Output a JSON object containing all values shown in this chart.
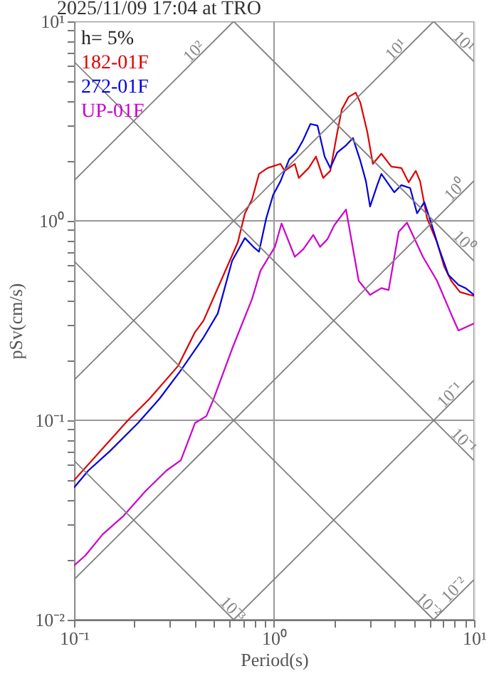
{
  "chart_data": {
    "type": "line",
    "title": "2025/11/09 17:04 at TRO",
    "xlabel": "Period(s)",
    "ylabel": "pSv(cm/s)",
    "log": "xy",
    "grid": true,
    "legend": "top left",
    "line_style": "solid",
    "marker": "none",
    "xlim": [
      0.1,
      10
    ],
    "ylim": [
      0.01,
      10
    ],
    "xticks": [
      {
        "value": 0.1,
        "label": "10⁻¹"
      },
      {
        "value": 0.2,
        "label": null
      },
      {
        "value": 0.3,
        "label": null
      },
      {
        "value": 0.4,
        "label": null
      },
      {
        "value": 0.5,
        "label": null
      },
      {
        "value": 0.6,
        "label": null
      },
      {
        "value": 0.7,
        "label": null
      },
      {
        "value": 0.8,
        "label": null
      },
      {
        "value": 0.9,
        "label": null
      },
      {
        "value": 1,
        "label": "10⁰"
      },
      {
        "value": 2,
        "label": null
      },
      {
        "value": 3,
        "label": null
      },
      {
        "value": 4,
        "label": null
      },
      {
        "value": 5,
        "label": null
      },
      {
        "value": 6,
        "label": null
      },
      {
        "value": 7,
        "label": null
      },
      {
        "value": 8,
        "label": null
      },
      {
        "value": 9,
        "label": null
      },
      {
        "value": 10,
        "label": "10¹"
      }
    ],
    "yticks": [
      {
        "value": 0.01,
        "label": "10⁻²"
      },
      {
        "value": 0.02,
        "label": null
      },
      {
        "value": 0.03,
        "label": null
      },
      {
        "value": 0.04,
        "label": null
      },
      {
        "value": 0.05,
        "label": null
      },
      {
        "value": 0.06,
        "label": null
      },
      {
        "value": 0.07,
        "label": null
      },
      {
        "value": 0.08,
        "label": null
      },
      {
        "value": 0.09,
        "label": null
      },
      {
        "value": 0.1,
        "label": "10⁻¹"
      },
      {
        "value": 0.2,
        "label": null
      },
      {
        "value": 0.3,
        "label": null
      },
      {
        "value": 0.4,
        "label": null
      },
      {
        "value": 0.5,
        "label": null
      },
      {
        "value": 0.6,
        "label": null
      },
      {
        "value": 0.7,
        "label": null
      },
      {
        "value": 0.8,
        "label": null
      },
      {
        "value": 0.9,
        "label": null
      },
      {
        "value": 1,
        "label": "10⁰"
      },
      {
        "value": 2,
        "label": null
      },
      {
        "value": 3,
        "label": null
      },
      {
        "value": 4,
        "label": null
      },
      {
        "value": 5,
        "label": null
      },
      {
        "value": 6,
        "label": null
      },
      {
        "value": 7,
        "label": null
      },
      {
        "value": 8,
        "label": null
      },
      {
        "value": 9,
        "label": null
      },
      {
        "value": 10,
        "label": "10¹"
      }
    ],
    "annotations": [
      "h= 5%",
      {
        "text": "10²",
        "x": 0.42,
        "y": 6.68
      },
      {
        "text": "10¹",
        "x": 4.3,
        "y": 6.84
      },
      {
        "text": "10¹",
        "x": 8.4,
        "y": 7.48
      },
      {
        "text": "10⁰",
        "x": 8.5,
        "y": 1.35
      },
      {
        "text": "10⁰",
        "x": 8.4,
        "y": 0.748
      },
      {
        "text": "10⁻¹",
        "x": 8.0,
        "y": 0.127
      },
      {
        "text": "10⁻¹",
        "x": 8.4,
        "y": 0.0748
      },
      {
        "text": "10⁻³",
        "x": 0.587,
        "y": 0.0107
      },
      {
        "text": "10⁻²",
        "x": 5.6,
        "y": 0.0112
      },
      {
        "text": "10⁻²",
        "x": 8.4,
        "y": 0.0134
      }
    ],
    "series": [
      {
        "name": "182-01F",
        "color": "#dd0000",
        "x": [
          0.1,
          0.186,
          0.238,
          0.331,
          0.403,
          0.444,
          0.559,
          0.659,
          0.715,
          0.776,
          0.841,
          0.929,
          1.077,
          1.13,
          1.27,
          1.33,
          1.49,
          1.62,
          1.76,
          1.91,
          2.07,
          2.18,
          2.36,
          2.56,
          2.7,
          2.93,
          3.12,
          3.44,
          3.86,
          4.33,
          4.71,
          5.11,
          5.37,
          5.82,
          6.53,
          7.09,
          7.69,
          8.49,
          9.53,
          10
        ],
        "values": [
          0.05,
          0.1,
          0.128,
          0.187,
          0.277,
          0.316,
          0.535,
          0.78,
          1.09,
          1.28,
          1.72,
          1.84,
          1.93,
          1.78,
          1.93,
          1.64,
          1.84,
          2.1,
          1.64,
          1.78,
          2.77,
          3.61,
          4.18,
          4.39,
          3.92,
          2.77,
          1.93,
          2.17,
          1.87,
          1.84,
          1.56,
          1.78,
          1.58,
          1.03,
          0.78,
          0.59,
          0.5,
          0.44,
          0.425,
          0.42
        ]
      },
      {
        "name": "272-01F",
        "color": "#0000dd",
        "x": [
          0.1,
          0.118,
          0.151,
          0.209,
          0.267,
          0.342,
          0.444,
          0.523,
          0.617,
          0.715,
          0.788,
          0.841,
          0.914,
          0.99,
          1.077,
          1.19,
          1.29,
          1.4,
          1.52,
          1.65,
          1.79,
          1.91,
          2.07,
          2.29,
          2.48,
          2.7,
          2.88,
          3.02,
          3.28,
          3.44,
          3.99,
          4.33,
          4.79,
          5.19,
          5.64,
          6.11,
          6.64,
          7.45,
          8.36,
          9.06,
          10
        ],
        "values": [
          0.046,
          0.056,
          0.07,
          0.097,
          0.128,
          0.178,
          0.26,
          0.343,
          0.63,
          0.82,
          0.74,
          0.7,
          1.03,
          1.35,
          1.58,
          2.03,
          2.2,
          2.55,
          3.06,
          3.0,
          2.1,
          1.84,
          2.2,
          2.39,
          2.6,
          2.0,
          1.58,
          1.18,
          1.51,
          1.72,
          1.39,
          1.51,
          1.46,
          1.09,
          1.24,
          0.97,
          0.74,
          0.535,
          0.477,
          0.46,
          0.425
        ]
      },
      {
        "name": "UP-01F",
        "color": "#cc00cc",
        "x": [
          0.1,
          0.114,
          0.139,
          0.177,
          0.227,
          0.29,
          0.342,
          0.403,
          0.459,
          0.499,
          0.617,
          0.776,
          0.855,
          1.01,
          1.09,
          1.27,
          1.4,
          1.57,
          1.7,
          1.85,
          2.0,
          2.29,
          2.65,
          3.02,
          3.44,
          3.74,
          4.2,
          4.62,
          5.55,
          6.53,
          7.82,
          8.36,
          10
        ],
        "values": [
          0.0187,
          0.021,
          0.0268,
          0.0332,
          0.044,
          0.056,
          0.063,
          0.097,
          0.105,
          0.128,
          0.228,
          0.405,
          0.562,
          0.74,
          0.97,
          0.66,
          0.72,
          0.85,
          0.74,
          0.81,
          0.95,
          1.14,
          0.5,
          0.425,
          0.46,
          0.45,
          0.88,
          0.98,
          0.66,
          0.5,
          0.327,
          0.282,
          0.306
        ]
      },
      {
        "color": "#808080",
        "x": [
          0.1,
          0.628
        ],
        "values": [
          1.59,
          10
        ]
      },
      {
        "color": "#808080",
        "x": [
          0.1,
          6.28
        ],
        "values": [
          0.159,
          10
        ]
      },
      {
        "color": "#808080",
        "x": [
          0.1,
          10
        ],
        "values": [
          0.0159,
          1.59
        ]
      },
      {
        "color": "#808080",
        "x": [
          0.628,
          10
        ],
        "values": [
          0.01,
          0.159
        ]
      },
      {
        "color": "#808080",
        "x": [
          6.28,
          10
        ],
        "values": [
          0.01,
          0.0159
        ]
      },
      {
        "color": "#808080",
        "x": [
          6.28,
          10
        ],
        "values": [
          10,
          6.28
        ]
      },
      {
        "color": "#808080",
        "x": [
          0.628,
          10
        ],
        "values": [
          10,
          0.628
        ]
      },
      {
        "color": "#808080",
        "x": [
          0.1,
          10
        ],
        "values": [
          6.28,
          0.0628
        ]
      },
      {
        "color": "#808080",
        "x": [
          0.1,
          6.28
        ],
        "values": [
          0.628,
          0.01
        ]
      },
      {
        "color": "#808080",
        "x": [
          0.1,
          0.628
        ],
        "values": [
          0.0628,
          0.01
        ]
      }
    ]
  }
}
